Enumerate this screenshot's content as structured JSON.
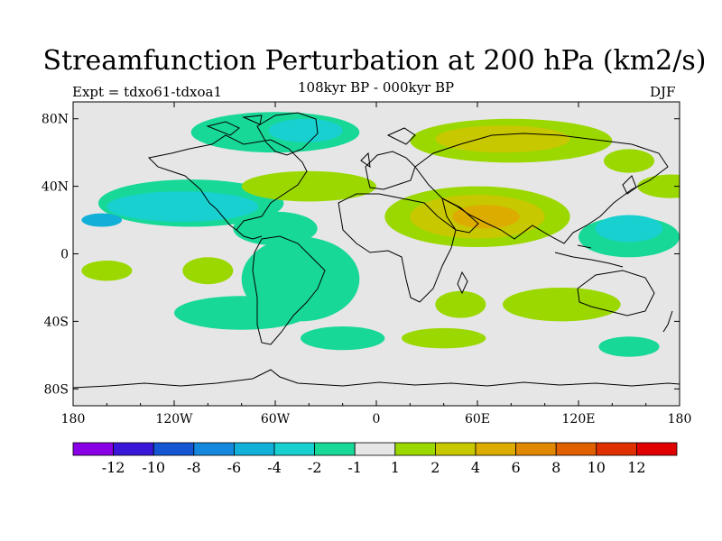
{
  "header": {
    "title": "Streamfunction Perturbation at 200 hPa (km2/s)",
    "experiment": "Expt = tdxo61-tdxoa1",
    "period": "108kyr BP - 000kyr BP",
    "season": "DJF"
  },
  "axes": {
    "x_ticks": [
      {
        "lon": -180,
        "label": "180"
      },
      {
        "lon": -120,
        "label": "120W"
      },
      {
        "lon": -60,
        "label": "60W"
      },
      {
        "lon": 0,
        "label": "0"
      },
      {
        "lon": 60,
        "label": "60E"
      },
      {
        "lon": 120,
        "label": "120E"
      },
      {
        "lon": 180,
        "label": "180"
      }
    ],
    "y_ticks": [
      {
        "lat": 80,
        "label": "80N"
      },
      {
        "lat": 40,
        "label": "40N"
      },
      {
        "lat": 0,
        "label": "0"
      },
      {
        "lat": -40,
        "label": "40S"
      },
      {
        "lat": -80,
        "label": "80S"
      }
    ],
    "lon_range": [
      -180,
      180
    ],
    "lat_range": [
      -90,
      90
    ]
  },
  "colorbar": {
    "colors": [
      "#8a00e6",
      "#3a16d8",
      "#1456d4",
      "#1488dc",
      "#12b0d8",
      "#18d0d0",
      "#18d898",
      "#e6e6e6",
      "#9ad800",
      "#c8c800",
      "#dcac00",
      "#e08800",
      "#e06000",
      "#e03000",
      "#e00000"
    ],
    "labels": [
      "-12",
      "-10",
      "-8",
      "-6",
      "-4",
      "-2",
      "-1",
      "1",
      "2",
      "4",
      "6",
      "8",
      "10",
      "12"
    ]
  },
  "legend_colors": {
    "neg1": "#18d898",
    "neg2": "#18d0d0",
    "neg4": "#12b0d8",
    "pos2": "#9ad800",
    "pos4": "#c8c800",
    "pos6": "#dcac00",
    "background": "#e6e6e6"
  },
  "chart_data": {
    "type": "map",
    "projection": "cylindrical-equidistant",
    "field": "streamfunction perturbation",
    "units": "km2/s",
    "level": "200 hPa",
    "contour_levels": [
      -12,
      -10,
      -8,
      -6,
      -4,
      -2,
      -1,
      1,
      2,
      4,
      6,
      8,
      10,
      12
    ],
    "regions": [
      {
        "name": "arctic-low",
        "level": -1,
        "lon": -60,
        "lat": 72,
        "rlon": 50,
        "rlat": 12
      },
      {
        "name": "greenland-low",
        "level": -2,
        "lon": -42,
        "lat": 73,
        "rlon": 22,
        "rlat": 7
      },
      {
        "name": "north-pacific-low",
        "level": -1,
        "lon": -110,
        "lat": 30,
        "rlon": 55,
        "rlat": 14
      },
      {
        "name": "north-pacific-low-core",
        "level": -2,
        "lon": -115,
        "lat": 28,
        "rlon": 45,
        "rlat": 9
      },
      {
        "name": "hawaii-low",
        "level": -4,
        "lon": -163,
        "lat": 20,
        "rlon": 12,
        "rlat": 4
      },
      {
        "name": "caribbean-low",
        "level": -1,
        "lon": -60,
        "lat": 15,
        "rlon": 25,
        "rlat": 10
      },
      {
        "name": "south-america-low",
        "level": -1,
        "lon": -45,
        "lat": -15,
        "rlon": 35,
        "rlat": 25
      },
      {
        "name": "southeast-pacific-low",
        "level": -1,
        "lon": -80,
        "lat": -35,
        "rlon": 40,
        "rlat": 10
      },
      {
        "name": "west-pacific-low",
        "level": -1,
        "lon": 150,
        "lat": 10,
        "rlon": 30,
        "rlat": 12
      },
      {
        "name": "west-pacific-low-core",
        "level": -2,
        "lon": 150,
        "lat": 15,
        "rlon": 20,
        "rlat": 8
      },
      {
        "name": "southern-ocean-low",
        "level": -1,
        "lon": -20,
        "lat": -50,
        "rlon": 25,
        "rlat": 7
      },
      {
        "name": "australia-south-low",
        "level": -1,
        "lon": 150,
        "lat": -55,
        "rlon": 18,
        "rlat": 6
      },
      {
        "name": "eurasia-high",
        "level": 2,
        "lon": 80,
        "lat": 67,
        "rlon": 60,
        "rlat": 13
      },
      {
        "name": "eurasia-high-core",
        "level": 4,
        "lon": 75,
        "lat": 68,
        "rlon": 40,
        "rlat": 8
      },
      {
        "name": "north-atlantic-high",
        "level": 2,
        "lon": -40,
        "lat": 40,
        "rlon": 40,
        "rlat": 9
      },
      {
        "name": "north-africa-high",
        "level": 2,
        "lon": 60,
        "lat": 22,
        "rlon": 55,
        "rlat": 18
      },
      {
        "name": "north-africa-high-mid",
        "level": 4,
        "lon": 60,
        "lat": 22,
        "rlon": 40,
        "rlat": 13
      },
      {
        "name": "middle-east-high-core",
        "level": 6,
        "lon": 65,
        "lat": 22,
        "rlon": 20,
        "rlat": 7
      },
      {
        "name": "northwest-pacific-high",
        "level": 2,
        "lon": 150,
        "lat": 55,
        "rlon": 15,
        "rlat": 7
      },
      {
        "name": "north-pacific-east-high",
        "level": 2,
        "lon": 175,
        "lat": 40,
        "rlon": 20,
        "rlat": 7
      },
      {
        "name": "east-pacific-high",
        "level": 2,
        "lon": -100,
        "lat": -10,
        "rlon": 15,
        "rlat": 8
      },
      {
        "name": "south-indian-high",
        "level": 2,
        "lon": 110,
        "lat": -30,
        "rlon": 35,
        "rlat": 10
      },
      {
        "name": "south-atlantic-high",
        "level": 2,
        "lon": 50,
        "lat": -30,
        "rlon": 15,
        "rlat": 8
      },
      {
        "name": "southern-ocean-high",
        "level": 2,
        "lon": 40,
        "lat": -50,
        "rlon": 25,
        "rlat": 6
      },
      {
        "name": "south-pacific-high",
        "level": 2,
        "lon": -160,
        "lat": -10,
        "rlon": 15,
        "rlat": 6
      }
    ]
  }
}
